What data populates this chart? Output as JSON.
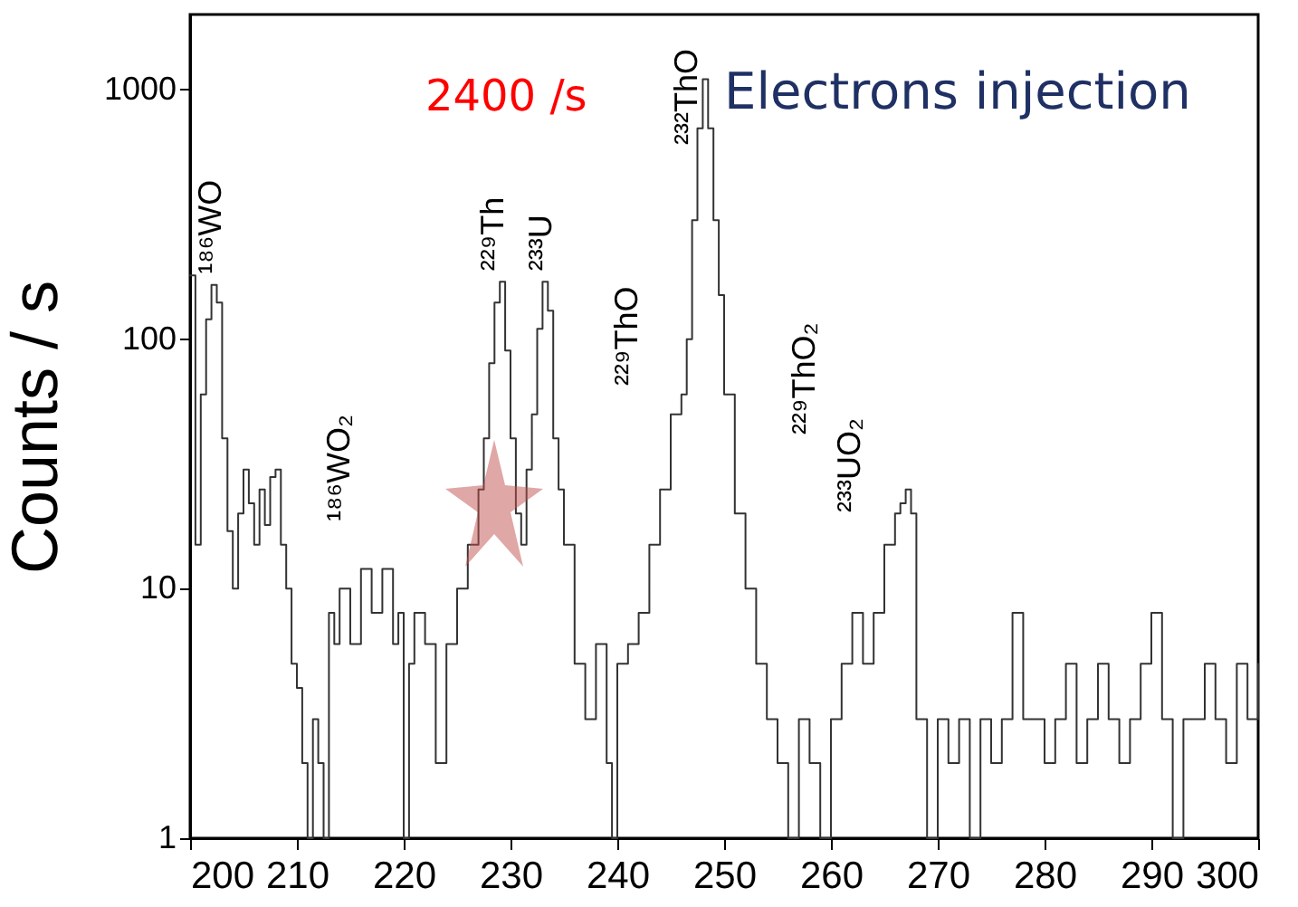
{
  "chart_data": {
    "type": "step",
    "ylabel": "Counts / s",
    "log": "y",
    "xlim": [
      200,
      300
    ],
    "ylim": [
      1,
      2000
    ],
    "xticks": [
      200,
      210,
      220,
      230,
      240,
      250,
      260,
      270,
      280,
      290,
      300
    ],
    "yticks": [
      1,
      10,
      100,
      1000
    ],
    "grid": false,
    "annotations": [
      "2400 /s",
      "Electrons injection",
      "¹⁸⁶WO₂",
      "²²⁹ThO",
      "²²⁹ThO₂",
      "²³³UO₂",
      "²³²ThO",
      {
        "text": "¹⁸⁶WO",
        "x": 202,
        "y": 165
      },
      {
        "text": "²²⁹Th",
        "x": 228.5,
        "y": 170
      },
      {
        "text": "²³³U",
        "x": 233,
        "y": 170
      }
    ],
    "series": [
      {
        "color": "#333333",
        "x": [
          200,
          200.5,
          201,
          201.5,
          202,
          202.5,
          203,
          203.5,
          204,
          204.5,
          205,
          205.5,
          206,
          206.5,
          207,
          207.5,
          208,
          208.5,
          209,
          209.5,
          210,
          210.5,
          211,
          211.5,
          212,
          212.5,
          213,
          213.5,
          214,
          215,
          216,
          217,
          218,
          219,
          219.5,
          220,
          220.5,
          221,
          222,
          223,
          224,
          225,
          226,
          227,
          227.5,
          228,
          228.5,
          229,
          229.5,
          230,
          230.5,
          231,
          231.5,
          232,
          232.5,
          233,
          233.5,
          234,
          234.5,
          235,
          236,
          237,
          238,
          239,
          239.5,
          240,
          241,
          242,
          243,
          244,
          245,
          246,
          246.5,
          247,
          247.5,
          248,
          248.5,
          249,
          249.5,
          250,
          251,
          252,
          253,
          254,
          255,
          256,
          257,
          258,
          259,
          260,
          261,
          262,
          263,
          264,
          265,
          266,
          266.5,
          267,
          267.5,
          268,
          269,
          270,
          271,
          272,
          273,
          274,
          275,
          276,
          277,
          278,
          279,
          280,
          281,
          282,
          283,
          284,
          285,
          286,
          287,
          288,
          289,
          290,
          291,
          292,
          293,
          294,
          295,
          296,
          297,
          298,
          299,
          300
        ],
        "values": [
          180,
          15,
          60,
          120,
          165,
          140,
          40,
          17,
          10,
          20,
          30,
          22,
          15,
          25,
          18,
          28,
          30,
          15,
          10,
          5,
          4,
          2,
          1,
          3,
          2,
          1,
          8,
          6,
          10,
          6,
          12,
          8,
          12,
          6,
          8,
          1,
          5,
          8,
          6,
          2,
          6,
          10,
          15,
          25,
          40,
          80,
          140,
          170,
          90,
          40,
          20,
          15,
          30,
          50,
          110,
          170,
          130,
          40,
          25,
          15,
          5,
          3,
          6,
          2,
          1,
          5,
          6,
          8,
          15,
          25,
          50,
          60,
          100,
          300,
          700,
          1100,
          700,
          300,
          150,
          60,
          20,
          10,
          5,
          3,
          2,
          1,
          3,
          2,
          1,
          3,
          5,
          8,
          5,
          8,
          15,
          20,
          22,
          25,
          20,
          3,
          1,
          3,
          2,
          3,
          1,
          3,
          2,
          3,
          8,
          3,
          3,
          2,
          3,
          5,
          2,
          3,
          5,
          3,
          2,
          3,
          5,
          8,
          3,
          1,
          3,
          3,
          5,
          3,
          2,
          5,
          3,
          5
        ]
      }
    ]
  }
}
